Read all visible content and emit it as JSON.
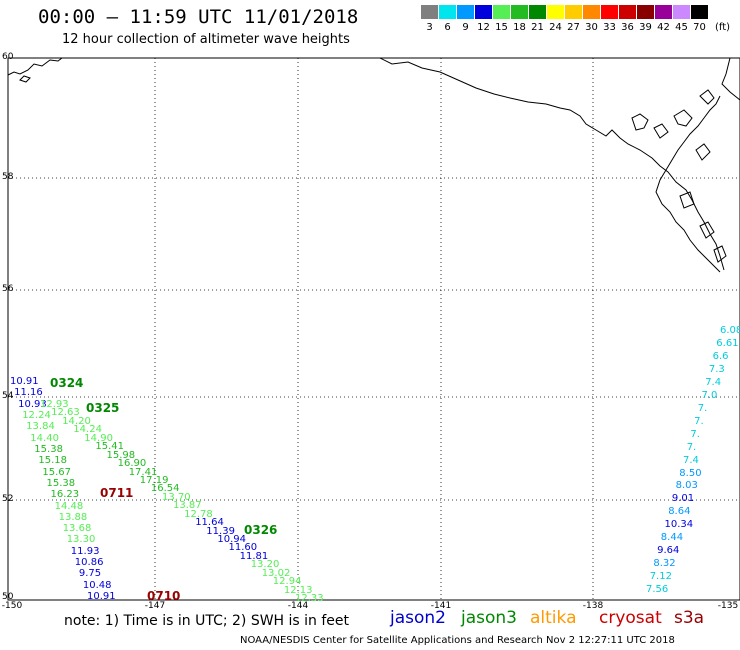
{
  "header": {
    "title": "00:00 – 11:59 UTC 11/01/2018",
    "subtitle": "12 hour collection of altimeter wave heights"
  },
  "legend": {
    "unit": "(ft)",
    "bins": [
      {
        "label": "3",
        "color": "#7f7f7f"
      },
      {
        "label": "6",
        "color": "#00e5ee"
      },
      {
        "label": "9",
        "color": "#0099ff"
      },
      {
        "label": "12",
        "color": "#0000dd"
      },
      {
        "label": "15",
        "color": "#55ee55"
      },
      {
        "label": "18",
        "color": "#22bb22"
      },
      {
        "label": "21",
        "color": "#008800"
      },
      {
        "label": "24",
        "color": "#ffff00"
      },
      {
        "label": "27",
        "color": "#ffcc00"
      },
      {
        "label": "30",
        "color": "#ff8800"
      },
      {
        "label": "33",
        "color": "#ff0000"
      },
      {
        "label": "36",
        "color": "#cc0000"
      },
      {
        "label": "39",
        "color": "#880000"
      },
      {
        "label": "42",
        "color": "#990099"
      },
      {
        "label": "45",
        "color": "#cc88ff"
      },
      {
        "label": "70",
        "color": "#000000"
      }
    ]
  },
  "axes": {
    "lat_labels": [
      "60",
      "58",
      "56",
      "54",
      "52",
      "50"
    ],
    "lon_labels": [
      "-150",
      "-147",
      "-144",
      "-141",
      "-138",
      "-135"
    ]
  },
  "footer": {
    "note": "note: 1) Time is in UTC; 2) SWH is in feet",
    "satellites": [
      {
        "name": "jason2",
        "color": "#0000cc"
      },
      {
        "name": "jason3",
        "color": "#008800"
      },
      {
        "name": "altika",
        "color": "#ff9900"
      },
      {
        "name": "cryosat",
        "color": "#cc0000"
      },
      {
        "name": "s3a",
        "color": "#990000"
      }
    ],
    "credit": "NOAA/NESDIS Center for Satellite Applications and Research   Nov  2 12:27:11 UTC 2018"
  },
  "passes": [
    {
      "label": "0324",
      "color": "#008800"
    },
    {
      "label": "0325",
      "color": "#008800"
    },
    {
      "label": "0711",
      "color": "#990000"
    },
    {
      "label": "0326",
      "color": "#008800"
    },
    {
      "label": "0710",
      "color": "#990000"
    }
  ],
  "tracks": {
    "left_a": [
      {
        "v": "10.91",
        "c": "#0000dd"
      },
      {
        "v": "11.16",
        "c": "#0000dd"
      },
      {
        "v": "10.93",
        "c": "#0000dd"
      },
      {
        "v": "12.24",
        "c": "#55ee55"
      },
      {
        "v": "13.84",
        "c": "#55ee55"
      },
      {
        "v": "14.40",
        "c": "#55ee55"
      },
      {
        "v": "15.38",
        "c": "#22bb22"
      },
      {
        "v": "15.18",
        "c": "#22bb22"
      },
      {
        "v": "15.67",
        "c": "#22bb22"
      },
      {
        "v": "15.38",
        "c": "#22bb22"
      },
      {
        "v": "16.23",
        "c": "#22bb22"
      },
      {
        "v": "14.48",
        "c": "#55ee55"
      },
      {
        "v": "13.88",
        "c": "#55ee55"
      },
      {
        "v": "13.68",
        "c": "#55ee55"
      },
      {
        "v": "13.30",
        "c": "#55ee55"
      },
      {
        "v": "11.93",
        "c": "#0000dd"
      },
      {
        "v": "10.86",
        "c": "#0000dd"
      },
      {
        "v": "9.75",
        "c": "#0000dd"
      },
      {
        "v": "10.48",
        "c": "#0000dd"
      },
      {
        "v": "10.91",
        "c": "#0000dd"
      }
    ],
    "left_b": [
      {
        "v": "12.93",
        "c": "#55ee55"
      },
      {
        "v": "12.63",
        "c": "#55ee55"
      },
      {
        "v": "14.20",
        "c": "#55ee55"
      },
      {
        "v": "14.24",
        "c": "#55ee55"
      },
      {
        "v": "14.90",
        "c": "#55ee55"
      },
      {
        "v": "15.41",
        "c": "#22bb22"
      },
      {
        "v": "15.98",
        "c": "#22bb22"
      },
      {
        "v": "16.90",
        "c": "#22bb22"
      },
      {
        "v": "17.41",
        "c": "#22bb22"
      },
      {
        "v": "17.19",
        "c": "#22bb22"
      },
      {
        "v": "16.54",
        "c": "#22bb22"
      },
      {
        "v": "13.70",
        "c": "#55ee55"
      },
      {
        "v": "13.87",
        "c": "#55ee55"
      },
      {
        "v": "12.78",
        "c": "#55ee55"
      },
      {
        "v": "11.64",
        "c": "#0000dd"
      },
      {
        "v": "11.39",
        "c": "#0000dd"
      },
      {
        "v": "10.94",
        "c": "#0000dd"
      },
      {
        "v": "11.60",
        "c": "#0000dd"
      },
      {
        "v": "11.81",
        "c": "#0000dd"
      },
      {
        "v": "13.20",
        "c": "#55ee55"
      },
      {
        "v": "13.02",
        "c": "#55ee55"
      },
      {
        "v": "12.94",
        "c": "#55ee55"
      },
      {
        "v": "12.13",
        "c": "#55ee55"
      },
      {
        "v": "12.33",
        "c": "#55ee55"
      }
    ],
    "right": [
      {
        "v": "6.08",
        "c": "#00ccdd"
      },
      {
        "v": "6.61",
        "c": "#00ccdd"
      },
      {
        "v": "6.6",
        "c": "#00ccdd"
      },
      {
        "v": "7.3",
        "c": "#00ccdd"
      },
      {
        "v": "7.4",
        "c": "#00ccdd"
      },
      {
        "v": "7.0",
        "c": "#00ccdd"
      },
      {
        "v": "7.",
        "c": "#00ccdd"
      },
      {
        "v": "7.",
        "c": "#00ccdd"
      },
      {
        "v": "7.",
        "c": "#00ccdd"
      },
      {
        "v": "7.",
        "c": "#00ccdd"
      },
      {
        "v": "7.4",
        "c": "#00ccdd"
      },
      {
        "v": "8.50",
        "c": "#0099ff"
      },
      {
        "v": "8.03",
        "c": "#0099ff"
      },
      {
        "v": "9.01",
        "c": "#0000dd"
      },
      {
        "v": "8.64",
        "c": "#0099ff"
      },
      {
        "v": "10.34",
        "c": "#0000dd"
      },
      {
        "v": "8.44",
        "c": "#0099ff"
      },
      {
        "v": "9.64",
        "c": "#0000dd"
      },
      {
        "v": "8.32",
        "c": "#0099ff"
      },
      {
        "v": "7.12",
        "c": "#00ccdd"
      },
      {
        "v": "7.56",
        "c": "#00ccdd"
      }
    ]
  }
}
